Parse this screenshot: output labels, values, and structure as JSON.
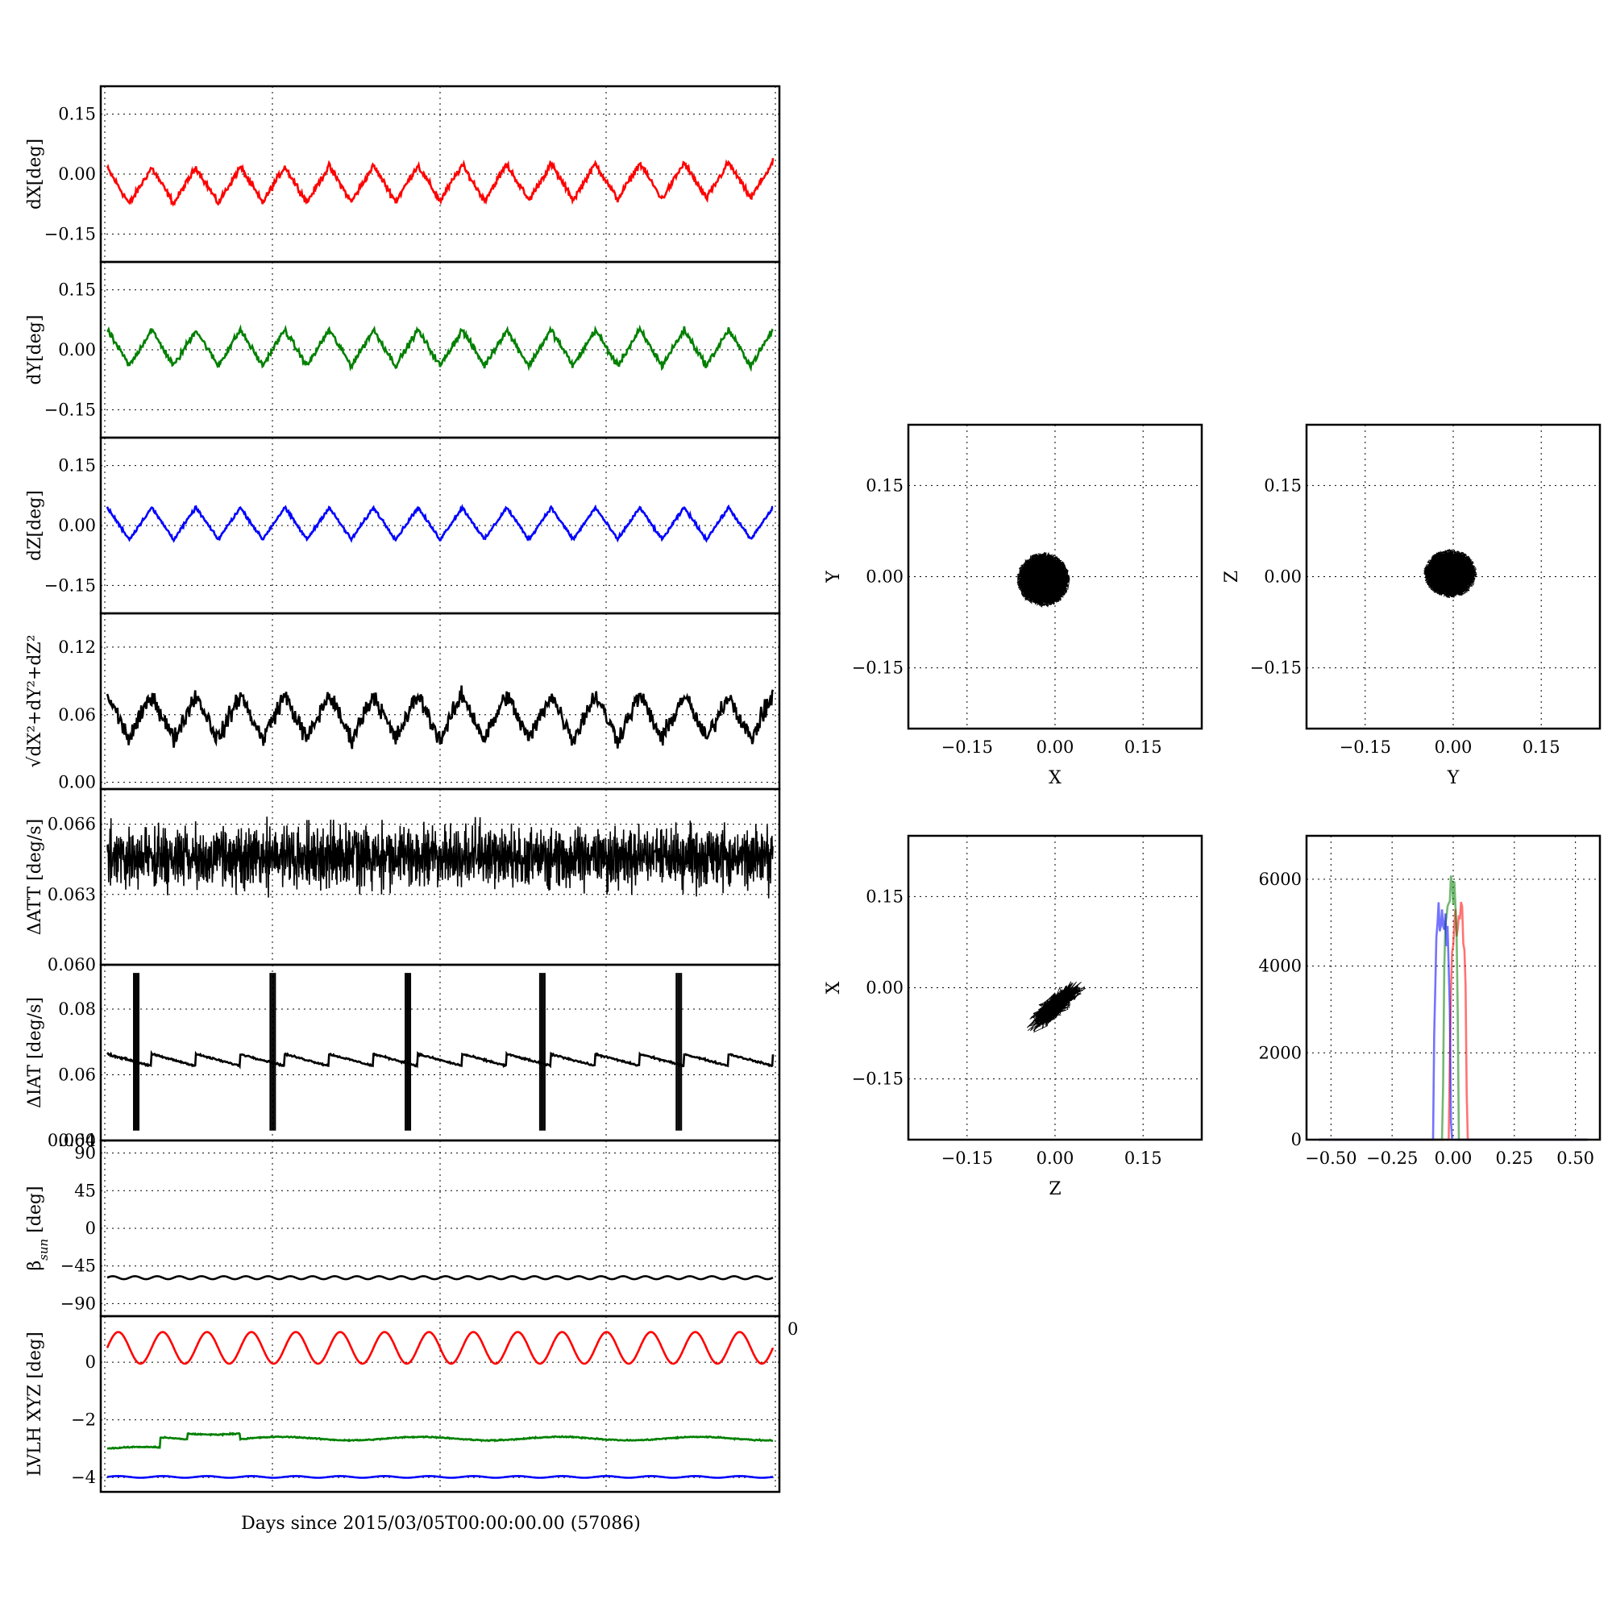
{
  "figure": {
    "xlabel": "Days since 2015/03/05T00:00:00.00 (57086)",
    "stray_tick": "0"
  },
  "colors": {
    "x": "#ff0000",
    "y": "#008000",
    "z": "#0000ff",
    "k": "#000000"
  },
  "chart_data": [
    {
      "id": "dx",
      "type": "line",
      "ylabel": "dX[deg]",
      "ylim": [
        -0.22,
        0.22
      ],
      "yticks": [
        0.15,
        0.0,
        -0.15
      ],
      "ytick_labels": [
        "0.15",
        "0.00",
        "−0.15"
      ],
      "grid": true,
      "series": [
        {
          "color": "x",
          "kind": "triangle",
          "offset": -0.03,
          "amplitude": 0.045,
          "noise": 0.012,
          "trend": 0.015,
          "spikes": [],
          "values_note": ""
        }
      ]
    },
    {
      "id": "dy",
      "type": "line",
      "ylabel": "dY[deg]",
      "ylim": [
        -0.22,
        0.22
      ],
      "yticks": [
        0.15,
        0.0,
        -0.15
      ],
      "ytick_labels": [
        "0.15",
        "0.00",
        "−0.15"
      ],
      "grid": true,
      "series": [
        {
          "color": "y",
          "kind": "triangle",
          "offset": 0.005,
          "amplitude": 0.045,
          "noise": 0.012,
          "trend": 0.0
        }
      ]
    },
    {
      "id": "dz",
      "type": "line",
      "ylabel": "dZ[deg]",
      "ylim": [
        -0.22,
        0.22
      ],
      "yticks": [
        0.15,
        0.0,
        -0.15
      ],
      "ytick_labels": [
        "0.15",
        "0.00",
        "−0.15"
      ],
      "grid": true,
      "series": [
        {
          "color": "z",
          "kind": "triangle",
          "offset": 0.005,
          "amplitude": 0.04,
          "noise": 0.006,
          "trend": 0.0
        }
      ]
    },
    {
      "id": "mag",
      "type": "line",
      "ylabel_parts": {
        "root": "√",
        "body": "dX²+dY²+dZ²"
      },
      "ylim": [
        -0.006,
        0.15
      ],
      "yticks": [
        0.12,
        0.06,
        0.0
      ],
      "ytick_labels": [
        "0.12",
        "0.06",
        "0.00"
      ],
      "grid": true,
      "series": [
        {
          "color": "k",
          "kind": "triangle",
          "offset": 0.058,
          "amplitude": 0.02,
          "noise": 0.012,
          "trend": 0.0
        }
      ]
    },
    {
      "id": "datt",
      "type": "line",
      "ylabel": "ΔATT [deg/s]",
      "ylim": [
        0.06,
        0.0675
      ],
      "yticks": [
        0.066,
        0.063
      ],
      "ytick_labels": [
        "0.066",
        "0.063"
      ],
      "overlap_label": "0.060",
      "grid": true,
      "series": [
        {
          "color": "k",
          "kind": "dense",
          "offset": 0.0646,
          "amplitude": 0.0012,
          "noise": 0.0014,
          "trend": 0.0
        }
      ]
    },
    {
      "id": "diat",
      "type": "line",
      "ylabel": "ΔIAT [deg/s]",
      "ylim": [
        0.04,
        0.0935
      ],
      "yticks": [
        0.08,
        0.06,
        0.04
      ],
      "ytick_labels": [
        "0.08",
        "0.06",
        "0.04"
      ],
      "overlap_label": "0.060",
      "grid": true,
      "series": [
        {
          "color": "k",
          "kind": "saw",
          "offset": 0.0645,
          "amplitude": 0.0018,
          "noise": 0.0004,
          "trend": 0.0,
          "spikes": [
            0.04,
            0.245,
            0.448,
            0.65,
            0.855
          ],
          "spike_range": [
            0.043,
            0.091
          ]
        }
      ]
    },
    {
      "id": "beta",
      "type": "line",
      "ylabel": "βsun [deg]",
      "ylabel_base": "β",
      "ylabel_sub": "sun",
      "ylabel_unit": " [deg]",
      "ylim": [
        -105,
        105
      ],
      "yticks": [
        90,
        45,
        0,
        -45,
        -90
      ],
      "ytick_labels": [
        "90",
        "45",
        "0",
        "−45",
        "−90"
      ],
      "grid": true,
      "series": [
        {
          "color": "k",
          "kind": "sine",
          "offset": -59,
          "amplitude": 1.8,
          "noise": 0.0,
          "trend": 0.0
        }
      ]
    },
    {
      "id": "lvlh",
      "type": "line",
      "ylabel": "LVLH XYZ [deg]",
      "ylim": [
        -4.5,
        1.6
      ],
      "yticks": [
        0,
        -2,
        -4
      ],
      "ytick_labels": [
        "0",
        "−2",
        "−4"
      ],
      "grid": true,
      "series": [
        {
          "color": "x",
          "kind": "sine",
          "offset": 0.5,
          "amplitude": 0.55,
          "noise": 0.0,
          "trend": 0.0
        },
        {
          "color": "y",
          "kind": "drift",
          "offset": -2.65,
          "amplitude": 0.06,
          "noise": 0.03,
          "trend": 0.0
        },
        {
          "color": "z",
          "kind": "sine",
          "offset": -3.98,
          "amplitude": 0.03,
          "noise": 0.01,
          "trend": 0.0
        }
      ]
    },
    {
      "id": "sc_xy",
      "type": "scatter",
      "xlabel": "X",
      "ylabel": "Y",
      "xlim": [
        -0.25,
        0.25
      ],
      "ylim": [
        -0.25,
        0.25
      ],
      "xticks": [
        -0.15,
        0.0,
        0.15
      ],
      "yticks": [
        0.15,
        0.0,
        -0.15
      ],
      "xtick_labels": [
        "−0.15",
        "0.00",
        "0.15"
      ],
      "ytick_labels": [
        "0.15",
        "0.00",
        "−0.15"
      ],
      "cloud": {
        "cx": -0.02,
        "cy": -0.005,
        "rx": 0.045,
        "ry": 0.045,
        "tilt": 0.6,
        "ring": true
      },
      "grid": true
    },
    {
      "id": "sc_yz",
      "type": "scatter",
      "xlabel": "Y",
      "ylabel": "Z",
      "xlim": [
        -0.25,
        0.25
      ],
      "ylim": [
        -0.25,
        0.25
      ],
      "xticks": [
        -0.15,
        0.0,
        0.15
      ],
      "yticks": [
        0.15,
        0.0,
        -0.15
      ],
      "xtick_labels": [
        "−0.15",
        "0.00",
        "0.15"
      ],
      "ytick_labels": [
        "0.15",
        "0.00",
        "−0.15"
      ],
      "cloud": {
        "cx": -0.005,
        "cy": 0.005,
        "rx": 0.045,
        "ry": 0.04,
        "tilt": 0.0,
        "ring": true
      },
      "grid": true
    },
    {
      "id": "sc_zx",
      "type": "scatter",
      "xlabel": "Z",
      "ylabel": "X",
      "xlim": [
        -0.25,
        0.25
      ],
      "ylim": [
        -0.25,
        0.25
      ],
      "xticks": [
        -0.15,
        0.0,
        0.15
      ],
      "yticks": [
        0.15,
        0.0,
        -0.15
      ],
      "xtick_labels": [
        "−0.15",
        "0.00",
        "0.15"
      ],
      "ytick_labels": [
        "0.15",
        "0.00",
        "−0.15"
      ],
      "cloud": {
        "cx": 0.0,
        "cy": -0.03,
        "rx": 0.065,
        "ry": 0.02,
        "tilt": 0.72,
        "ring": false
      },
      "grid": true
    },
    {
      "id": "hist",
      "type": "line",
      "subtype": "histogram",
      "xlim": [
        -0.6,
        0.6
      ],
      "ylim": [
        0,
        7000
      ],
      "xticks": [
        -0.5,
        -0.25,
        0.0,
        0.25,
        0.5
      ],
      "yticks": [
        6000,
        4000,
        2000,
        0
      ],
      "xtick_labels": [
        "−0.50",
        "−0.25",
        "0.00",
        "0.25",
        "0.50"
      ],
      "ytick_labels": [
        "6000",
        "4000",
        "2000",
        "0"
      ],
      "grid": true,
      "series": [
        {
          "color": "x",
          "center": 0.02,
          "width": 0.028,
          "peak": 5600
        },
        {
          "color": "y",
          "center": -0.01,
          "width": 0.025,
          "peak": 6300
        },
        {
          "color": "z",
          "center": -0.045,
          "width": 0.028,
          "peak": 5500
        }
      ]
    }
  ]
}
